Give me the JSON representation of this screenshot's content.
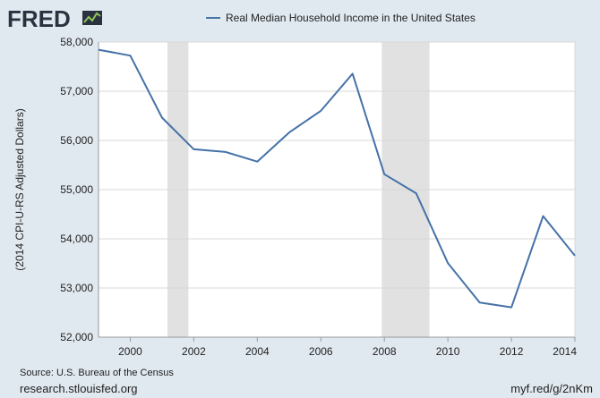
{
  "brand": {
    "logo_text": "FRED",
    "logo_icon": "line-chart-icon"
  },
  "colors": {
    "background": "#e1e9f0",
    "plot_background": "#ffffff",
    "series": "#4572a7",
    "recession": "#e1e1e1",
    "grid": "#d8d8d8",
    "text": "#222222",
    "logo": "#2a3240"
  },
  "footer": {
    "source": "Source: U.S. Bureau of the Census",
    "site": "research.stlouisfed.org",
    "shortlink": "myf.red/g/2nKm"
  },
  "chart_data": {
    "type": "line",
    "title": "",
    "xlabel": "",
    "ylabel": "(2014 CPI-U-RS Adjusted Dollars)",
    "legend": {
      "placement": "top-center",
      "entries": [
        "Real Median Household Income in the United States"
      ]
    },
    "grid": true,
    "xlim": [
      1999,
      2014
    ],
    "ylim": [
      52000,
      58000
    ],
    "x_ticks": [
      2000,
      2002,
      2004,
      2006,
      2008,
      2010,
      2012,
      2014
    ],
    "x_tick_labels": [
      "2000",
      "2002",
      "2004",
      "2006",
      "2008",
      "2010",
      "2012",
      "2014"
    ],
    "y_ticks": [
      52000,
      53000,
      54000,
      55000,
      56000,
      57000,
      58000
    ],
    "y_tick_labels": [
      "52,000",
      "53,000",
      "54,000",
      "55,000",
      "56,000",
      "57,000",
      "58,000"
    ],
    "recessions": [
      [
        2001.17,
        2001.83
      ],
      [
        2007.92,
        2009.42
      ]
    ],
    "series": [
      {
        "name": "Real Median Household Income in the United States",
        "x": [
          1999,
          2000,
          2001,
          2002,
          2003,
          2004,
          2005,
          2006,
          2007,
          2008,
          2009,
          2010,
          2011,
          2012,
          2013,
          2014
        ],
        "y": [
          57843,
          57724,
          56464,
          55820,
          55765,
          55569,
          56160,
          56602,
          57357,
          55313,
          54925,
          53507,
          52704,
          52608,
          54462,
          53657
        ]
      }
    ]
  }
}
